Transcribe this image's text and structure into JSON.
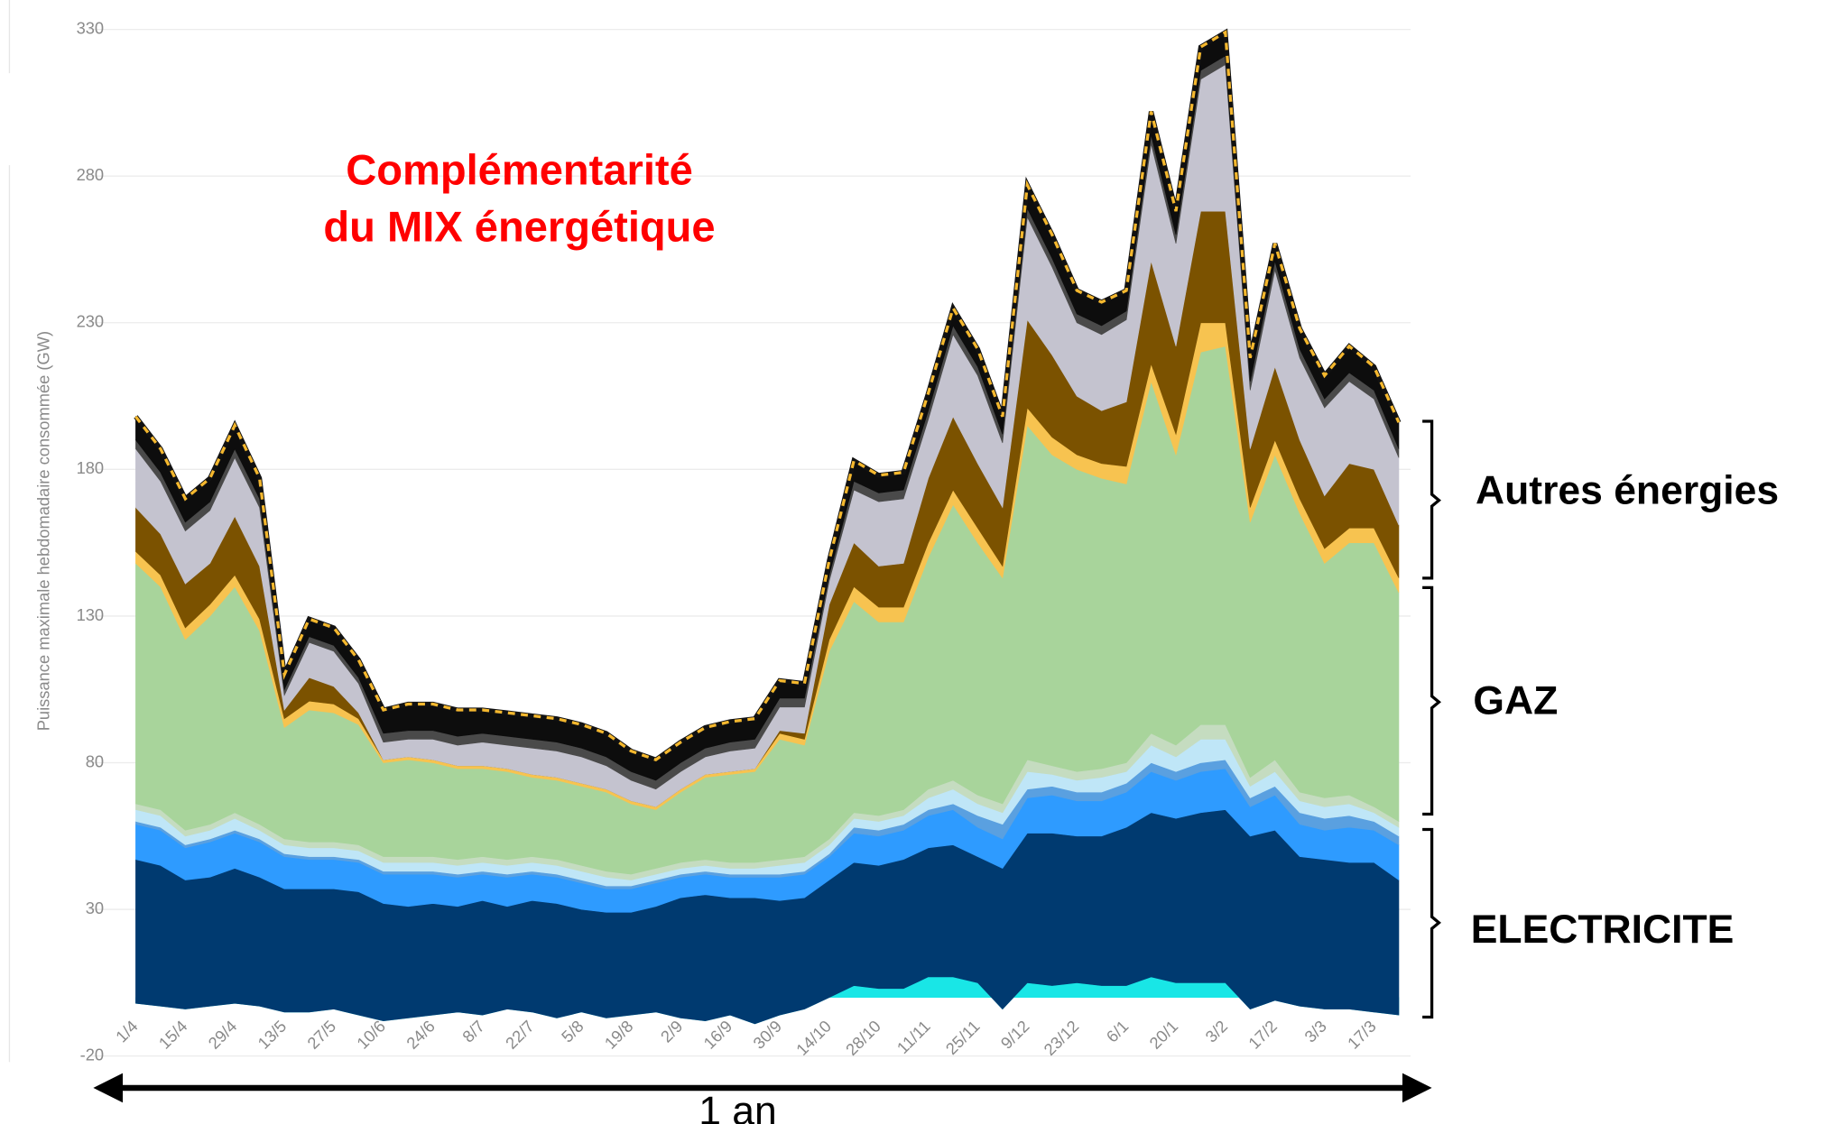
{
  "chart_data": {
    "type": "stacked_area",
    "title": [
      "Complémentarité",
      "du MIX énergétique"
    ],
    "y_label": "Puissance maximale hebdomadaire consommée (GW)",
    "groups": [
      "Autres énergies",
      "GAZ",
      "ELECTRICITE"
    ],
    "period_label": "1 an",
    "categories": [
      "1/4",
      null,
      "15/4",
      null,
      "29/4",
      null,
      "13/5",
      null,
      "27/5",
      null,
      "10/6",
      null,
      "24/6",
      null,
      "8/7",
      null,
      "22/7",
      null,
      "5/8",
      null,
      "19/8",
      null,
      "2/9",
      null,
      "16/9",
      null,
      "30/9",
      null,
      "14/10",
      null,
      "28/10",
      null,
      "11/11",
      null,
      "25/11",
      null,
      "9/12",
      null,
      "23/12",
      null,
      "6/1",
      null,
      "20/1",
      null,
      "3/2",
      null,
      "17/2",
      null,
      "3/3",
      null,
      "17/3",
      null
    ],
    "ylim": [
      -20,
      336
    ],
    "yticks": [
      -20,
      30,
      80,
      130,
      180,
      230,
      280,
      330
    ],
    "grid": true,
    "outline_color": "#f5b82e",
    "series": [
      {
        "color": "#19e6e6",
        "values": [
          -2,
          -3,
          -4,
          -3,
          -2,
          -3,
          -5,
          -5,
          -4,
          -6,
          -8,
          -7,
          -6,
          -5,
          -6,
          -4,
          -5,
          -7,
          -5,
          -7,
          -6,
          -5,
          -7,
          -8,
          -6,
          -9,
          -6,
          -4,
          0,
          4,
          3,
          3,
          7,
          7,
          5,
          -4,
          5,
          4,
          5,
          4,
          4,
          7,
          5,
          5,
          5,
          -4,
          -1,
          -3,
          -4,
          -4,
          -5,
          -6
        ]
      },
      {
        "color": "#003a70",
        "values": [
          49,
          48,
          44,
          44,
          46,
          44,
          42,
          42,
          41,
          42,
          40,
          38,
          38,
          36,
          39,
          35,
          38,
          39,
          35,
          36,
          35,
          36,
          41,
          43,
          40,
          43,
          39,
          38,
          40,
          42,
          42,
          44,
          44,
          45,
          43,
          48,
          51,
          52,
          50,
          51,
          54,
          56,
          56,
          58,
          59,
          59,
          58,
          51,
          51,
          50,
          51,
          46
        ]
      },
      {
        "color": "#2e9bff",
        "values": [
          12,
          12,
          11,
          12,
          12,
          12,
          11,
          10,
          10,
          10,
          10,
          11,
          10,
          10,
          9,
          10,
          9,
          9,
          9,
          8,
          8,
          8,
          7,
          7,
          7,
          7,
          8,
          8,
          8,
          10,
          10,
          10,
          11,
          12,
          10,
          10,
          12,
          13,
          12,
          12,
          12,
          14,
          13,
          14,
          14,
          10,
          12,
          11,
          10,
          12,
          11,
          12
        ]
      },
      {
        "color": "#5aa0e0",
        "values": [
          1,
          1,
          1,
          1,
          1,
          1,
          1,
          1,
          1,
          1,
          1,
          1,
          1,
          1,
          1,
          1,
          1,
          1,
          1,
          1,
          1,
          1,
          1,
          1,
          1,
          1,
          1,
          1,
          1,
          2,
          2,
          2,
          2,
          2,
          4,
          5,
          3,
          3,
          3,
          3,
          3,
          3,
          3,
          3,
          3,
          3,
          3,
          4,
          4,
          4,
          3,
          3
        ]
      },
      {
        "color": "#bfe6f7",
        "values": [
          4,
          4,
          3,
          3,
          4,
          3,
          3,
          3,
          3,
          3,
          3,
          3,
          3,
          3,
          3,
          3,
          3,
          3,
          3,
          3,
          2,
          2,
          2,
          2,
          2,
          2,
          3,
          3,
          3,
          3,
          3,
          3,
          4,
          5,
          4,
          4,
          6,
          4,
          4,
          5,
          4,
          6,
          5,
          8,
          7,
          4,
          5,
          4,
          4,
          4,
          3,
          3
        ]
      },
      {
        "color": "#c5dcc0",
        "values": [
          2,
          2,
          2,
          2,
          2,
          2,
          2,
          2,
          2,
          2,
          2,
          2,
          2,
          2,
          2,
          2,
          2,
          2,
          2,
          2,
          2,
          2,
          2,
          2,
          2,
          2,
          2,
          2,
          2,
          2,
          2,
          2,
          3,
          3,
          3,
          3,
          4,
          3,
          3,
          3,
          3,
          4,
          4,
          5,
          5,
          3,
          4,
          3,
          3,
          3,
          2,
          2
        ]
      },
      {
        "color": "#a8d49b",
        "values": [
          82,
          76,
          65,
          71,
          77,
          66,
          38,
          45,
          44,
          41,
          32,
          33,
          32,
          31,
          30,
          30,
          27,
          27,
          27,
          27,
          24,
          20,
          24,
          28,
          30,
          31,
          41,
          38,
          64,
          72,
          66,
          64,
          79,
          94,
          86,
          77,
          114,
          106,
          103,
          99,
          95,
          120,
          99,
          127,
          129,
          87,
          104,
          95,
          80,
          86,
          90,
          78
        ]
      },
      {
        "color": "#f7c350",
        "values": [
          4,
          4,
          4,
          4,
          4,
          4,
          3,
          3,
          3,
          2,
          1,
          1,
          1,
          1,
          1,
          1,
          1,
          1,
          1,
          1,
          1,
          1,
          1,
          1,
          1,
          1,
          2,
          2,
          4,
          5,
          5,
          5,
          5,
          5,
          5,
          4,
          6,
          6,
          5,
          5,
          6,
          6,
          7,
          10,
          8,
          5,
          5,
          5,
          5,
          5,
          5,
          5
        ]
      },
      {
        "color": "#7b5200",
        "values": [
          15,
          14,
          15,
          14,
          20,
          18,
          3,
          8,
          6,
          2,
          0,
          0,
          0,
          0,
          0,
          0,
          0,
          0,
          0,
          0,
          0,
          0,
          0,
          0,
          0,
          0,
          1,
          2,
          12,
          15,
          14,
          15,
          22,
          25,
          22,
          20,
          30,
          28,
          20,
          18,
          22,
          35,
          30,
          38,
          38,
          20,
          25,
          20,
          18,
          22,
          20,
          18
        ]
      },
      {
        "color": "#c4c3cf",
        "values": [
          20,
          18,
          18,
          18,
          20,
          20,
          5,
          12,
          12,
          10,
          6,
          6,
          7,
          7,
          8,
          8,
          9,
          9,
          9,
          8,
          7,
          6,
          6,
          6,
          7,
          7,
          8,
          9,
          8,
          18,
          22,
          22,
          20,
          28,
          30,
          22,
          35,
          30,
          25,
          26,
          28,
          40,
          35,
          45,
          50,
          20,
          33,
          28,
          30,
          28,
          24,
          23
        ]
      },
      {
        "color": "#4a4a4a",
        "values": [
          3,
          3,
          3,
          3,
          3,
          3,
          2,
          2,
          2,
          2,
          3,
          3,
          3,
          3,
          3,
          3,
          3,
          3,
          3,
          3,
          3,
          3,
          3,
          3,
          3,
          3,
          3,
          3,
          2,
          3,
          3,
          3,
          3,
          3,
          3,
          3,
          3,
          3,
          3,
          3,
          3,
          3,
          3,
          3,
          3,
          3,
          3,
          3,
          3,
          3,
          3,
          3
        ]
      },
      {
        "color": "#0d0d0d",
        "values": [
          8,
          8,
          8,
          8,
          8,
          7,
          5,
          6,
          6,
          6,
          8,
          9,
          9,
          9,
          8,
          8,
          8,
          8,
          8,
          8,
          7,
          7,
          7,
          7,
          7,
          7,
          6,
          5,
          5,
          7,
          6,
          6,
          6,
          6,
          6,
          6,
          8,
          8,
          8,
          8,
          7,
          8,
          8,
          8,
          8,
          8,
          6,
          7,
          8,
          9,
          8,
          9
        ]
      }
    ]
  }
}
